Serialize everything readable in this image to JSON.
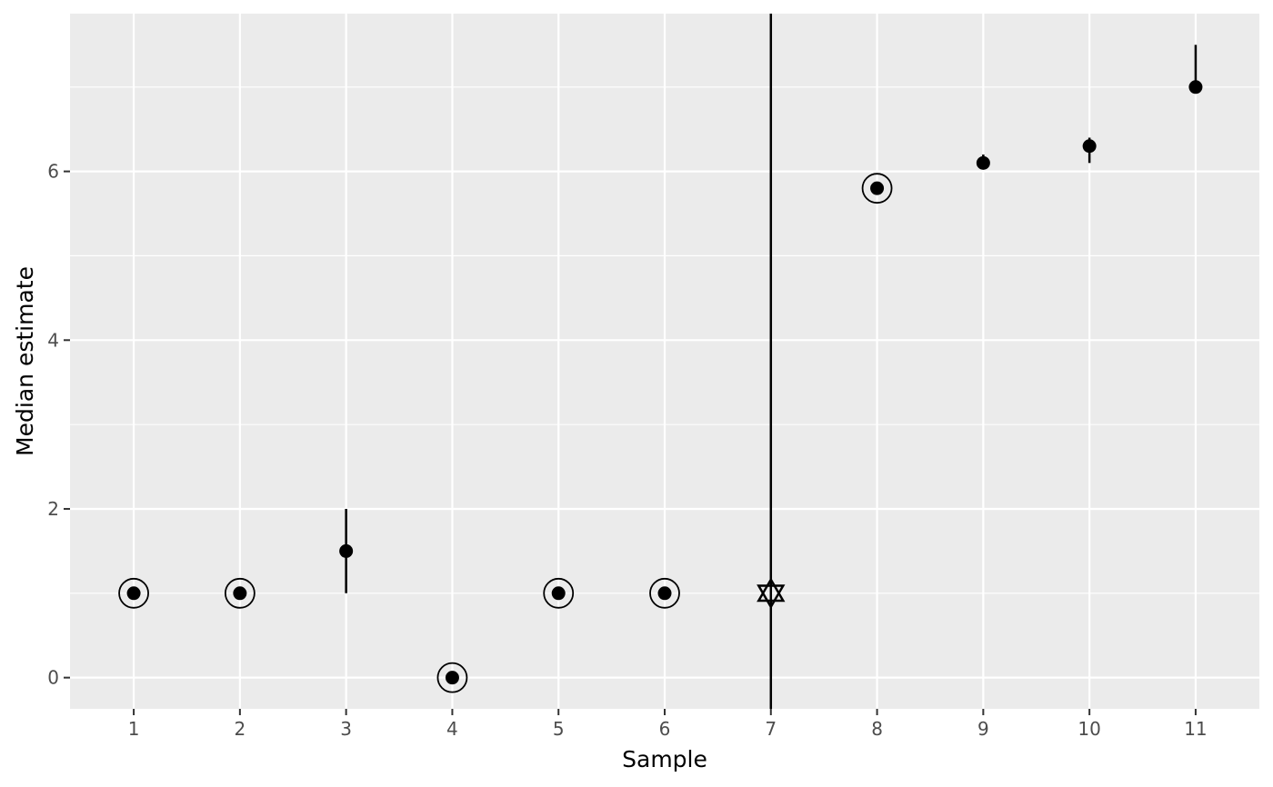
{
  "chart_data": {
    "type": "scatter",
    "xlabel": "Sample",
    "ylabel": "Median estimate",
    "x_ticks": [
      "1",
      "2",
      "3",
      "4",
      "5",
      "6",
      "7",
      "8",
      "9",
      "10",
      "11"
    ],
    "y_ticks": [
      "0",
      "2",
      "4",
      "6"
    ],
    "xlim": [
      0.4,
      11.6
    ],
    "ylim": [
      -0.37,
      7.87
    ],
    "grid": true,
    "legend": "none",
    "points": [
      {
        "x": 1,
        "y": 1.0,
        "low": 1.0,
        "high": 1.0,
        "marker": "circled-dot"
      },
      {
        "x": 2,
        "y": 1.0,
        "low": 1.0,
        "high": 1.0,
        "marker": "circled-dot"
      },
      {
        "x": 3,
        "y": 1.5,
        "low": 1.0,
        "high": 2.0,
        "marker": "dot"
      },
      {
        "x": 4,
        "y": 0.0,
        "low": 0.0,
        "high": 0.0,
        "marker": "circled-dot"
      },
      {
        "x": 5,
        "y": 1.0,
        "low": 1.0,
        "high": 1.0,
        "marker": "circled-dot"
      },
      {
        "x": 6,
        "y": 1.0,
        "low": 1.0,
        "high": 1.0,
        "marker": "circled-dot"
      },
      {
        "x": 7,
        "y": 1.0,
        "low": -0.37,
        "high": 7.87,
        "marker": "star-of-david"
      },
      {
        "x": 8,
        "y": 5.8,
        "low": 5.8,
        "high": 5.8,
        "marker": "circled-dot"
      },
      {
        "x": 9,
        "y": 6.1,
        "low": 6.05,
        "high": 6.2,
        "marker": "dot"
      },
      {
        "x": 10,
        "y": 6.3,
        "low": 6.1,
        "high": 6.4,
        "marker": "dot"
      },
      {
        "x": 11,
        "y": 7.0,
        "low": 7.0,
        "high": 7.5,
        "marker": "dot"
      }
    ],
    "colors": {
      "panel": "#ebebeb",
      "grid": "#ffffff",
      "mark": "#000000",
      "tick_text": "#4d4d4d"
    }
  }
}
